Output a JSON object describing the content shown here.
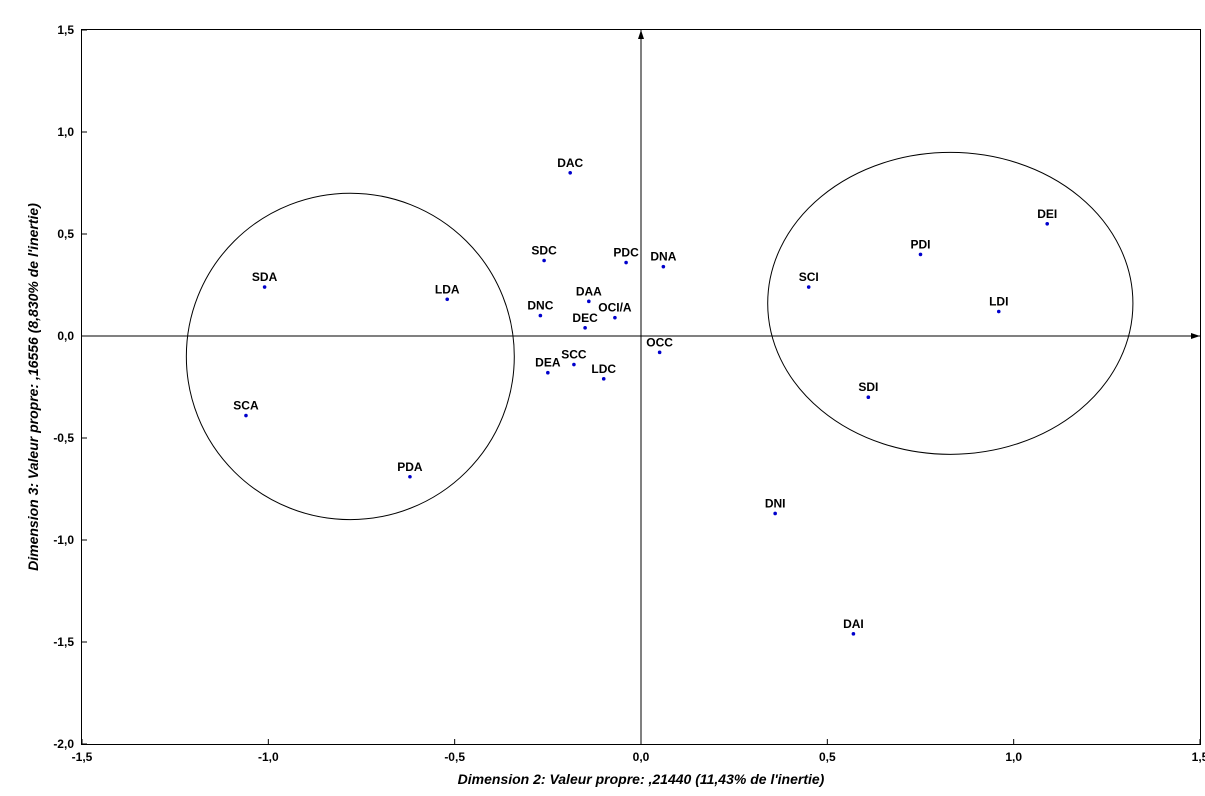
{
  "chart_data": {
    "type": "scatter",
    "title": "",
    "xlabel": "Dimension 2: Valeur propre: ,21440 (11,43%  de l'inertie)",
    "ylabel": "Dimension 3: Valeur propre: ,16556 (8,830%  de l'inertie)",
    "xlim": [
      -1.5,
      1.5
    ],
    "ylim": [
      -2.0,
      1.5
    ],
    "x_ticks": [
      "-1,5",
      "-1,0",
      "-0,5",
      "0,0",
      "0,5",
      "1,0",
      "1,5"
    ],
    "y_ticks": [
      "1,5",
      "1,0",
      "0,5",
      "0,0",
      "-0,5",
      "-1,0",
      "-1,5",
      "-2,0"
    ],
    "grid": false,
    "point_color": "#0000cc",
    "points": [
      {
        "label": "DAC",
        "x": -0.19,
        "y": 0.8
      },
      {
        "label": "SDC",
        "x": -0.26,
        "y": 0.37
      },
      {
        "label": "PDC",
        "x": -0.04,
        "y": 0.36
      },
      {
        "label": "DNA",
        "x": 0.06,
        "y": 0.34
      },
      {
        "label": "SDA",
        "x": -1.01,
        "y": 0.24
      },
      {
        "label": "LDA",
        "x": -0.52,
        "y": 0.18
      },
      {
        "label": "DAA",
        "x": -0.14,
        "y": 0.17
      },
      {
        "label": "DNC",
        "x": -0.27,
        "y": 0.1
      },
      {
        "label": "OCI/A",
        "x": -0.07,
        "y": 0.09
      },
      {
        "label": "DEC",
        "x": -0.15,
        "y": 0.04
      },
      {
        "label": "OCC",
        "x": 0.05,
        "y": -0.08
      },
      {
        "label": "SCC",
        "x": -0.18,
        "y": -0.14
      },
      {
        "label": "DEA",
        "x": -0.25,
        "y": -0.18
      },
      {
        "label": "LDC",
        "x": -0.1,
        "y": -0.21
      },
      {
        "label": "SCA",
        "x": -1.06,
        "y": -0.39
      },
      {
        "label": "PDA",
        "x": -0.62,
        "y": -0.69
      },
      {
        "label": "DEI",
        "x": 1.09,
        "y": 0.55
      },
      {
        "label": "PDI",
        "x": 0.75,
        "y": 0.4
      },
      {
        "label": "SCI",
        "x": 0.45,
        "y": 0.24
      },
      {
        "label": "LDI",
        "x": 0.96,
        "y": 0.12
      },
      {
        "label": "SDI",
        "x": 0.61,
        "y": -0.3
      },
      {
        "label": "DNI",
        "x": 0.36,
        "y": -0.87
      },
      {
        "label": "DAI",
        "x": 0.57,
        "y": -1.46
      }
    ],
    "ellipses": [
      {
        "cx": -0.78,
        "cy": -0.1,
        "rx": 0.44,
        "ry": 0.8
      },
      {
        "cx": 0.83,
        "cy": 0.16,
        "rx": 0.49,
        "ry": 0.74
      }
    ]
  }
}
